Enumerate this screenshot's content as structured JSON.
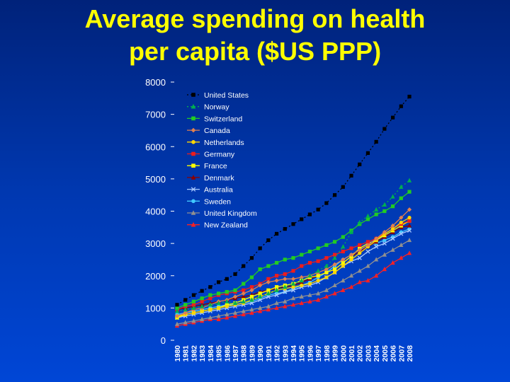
{
  "slide": {
    "title_line1": "Average spending on health",
    "title_line2": "per capita ($US PPP)"
  },
  "chart_data": {
    "type": "line",
    "title": "Average spending on health per capita ($US PPP)",
    "xlabel": "",
    "ylabel": "",
    "ylim": [
      0,
      8000
    ],
    "yticks": [
      0,
      1000,
      2000,
      3000,
      4000,
      5000,
      6000,
      7000,
      8000
    ],
    "grid": false,
    "legend_position": "top-left",
    "x": [
      "1980",
      "1981",
      "1982",
      "1983",
      "1984",
      "1985",
      "1986",
      "1987",
      "1988",
      "1989",
      "1990",
      "1991",
      "1992",
      "1993",
      "1994",
      "1995",
      "1996",
      "1997",
      "1998",
      "1999",
      "2000",
      "2001",
      "2002",
      "2003",
      "2004",
      "2005",
      "2006",
      "2007",
      "2008"
    ],
    "series": [
      {
        "name": "United States",
        "color": "#000000",
        "marker": "square",
        "line": "dotted",
        "values": [
          1100,
          1250,
          1400,
          1530,
          1650,
          1800,
          1900,
          2050,
          2300,
          2550,
          2850,
          3100,
          3300,
          3450,
          3600,
          3750,
          3900,
          4050,
          4250,
          4500,
          4750,
          5100,
          5450,
          5800,
          6150,
          6550,
          6900,
          7250,
          7550
        ]
      },
      {
        "name": "Norway",
        "color": "#00b050",
        "marker": "triangle",
        "line": "dotted",
        "values": [
          900,
          950,
          1000,
          1050,
          1100,
          1150,
          1200,
          1150,
          1200,
          1250,
          1350,
          1450,
          1550,
          1650,
          1750,
          1850,
          2000,
          2150,
          2300,
          2550,
          2900,
          3350,
          3650,
          3850,
          4050,
          4200,
          4450,
          4750,
          4950
        ]
      },
      {
        "name": "Switzerland",
        "color": "#22cc22",
        "marker": "square",
        "line": "solid",
        "values": [
          1000,
          1100,
          1200,
          1300,
          1400,
          1450,
          1500,
          1550,
          1750,
          1950,
          2200,
          2300,
          2400,
          2500,
          2550,
          2650,
          2750,
          2850,
          2950,
          3050,
          3200,
          3400,
          3600,
          3750,
          3900,
          4000,
          4150,
          4400,
          4600
        ]
      },
      {
        "name": "Canada",
        "color": "#e08050",
        "marker": "diamond",
        "line": "solid",
        "values": [
          750,
          850,
          950,
          1000,
          1100,
          1200,
          1250,
          1350,
          1450,
          1550,
          1700,
          1800,
          1850,
          1900,
          1900,
          1950,
          2000,
          2100,
          2200,
          2350,
          2500,
          2650,
          2800,
          2950,
          3150,
          3350,
          3550,
          3800,
          4050
        ]
      },
      {
        "name": "Netherlands",
        "color": "#ffd700",
        "marker": "circle",
        "line": "solid",
        "values": [
          750,
          800,
          850,
          900,
          950,
          1000,
          1050,
          1100,
          1150,
          1250,
          1350,
          1450,
          1550,
          1600,
          1650,
          1700,
          1750,
          1850,
          1950,
          2100,
          2300,
          2500,
          2700,
          2900,
          3100,
          3300,
          3450,
          3650,
          3800
        ]
      },
      {
        "name": "Germany",
        "color": "#ee1c1c",
        "marker": "square",
        "line": "solid",
        "values": [
          950,
          1050,
          1100,
          1200,
          1300,
          1400,
          1450,
          1500,
          1550,
          1650,
          1750,
          1900,
          2000,
          2050,
          2150,
          2300,
          2400,
          2450,
          2550,
          2650,
          2750,
          2850,
          2950,
          3050,
          3150,
          3300,
          3450,
          3600,
          3700
        ]
      },
      {
        "name": "France",
        "color": "#ffff00",
        "marker": "square",
        "line": "solid",
        "values": [
          700,
          800,
          850,
          900,
          950,
          1000,
          1100,
          1150,
          1250,
          1350,
          1450,
          1550,
          1650,
          1700,
          1750,
          1850,
          1950,
          2000,
          2100,
          2200,
          2400,
          2600,
          2850,
          3000,
          3100,
          3250,
          3400,
          3550,
          3700
        ]
      },
      {
        "name": "Denmark",
        "color": "#8b0000",
        "marker": "triangle",
        "line": "solid",
        "values": [
          950,
          1000,
          1050,
          1100,
          1150,
          1200,
          1250,
          1300,
          1350,
          1400,
          1500,
          1550,
          1600,
          1650,
          1700,
          1800,
          1900,
          2000,
          2100,
          2200,
          2400,
          2600,
          2750,
          2900,
          3050,
          3200,
          3350,
          3500,
          3550
        ]
      },
      {
        "name": "Australia",
        "color": "#a8c8ff",
        "marker": "x",
        "line": "solid",
        "values": [
          700,
          750,
          800,
          850,
          900,
          950,
          1000,
          1050,
          1100,
          1150,
          1250,
          1350,
          1400,
          1500,
          1550,
          1650,
          1700,
          1800,
          1950,
          2100,
          2300,
          2450,
          2550,
          2750,
          2900,
          3000,
          3150,
          3300,
          3400
        ]
      },
      {
        "name": "Sweden",
        "color": "#40c8ff",
        "marker": "circle",
        "line": "solid",
        "values": [
          800,
          850,
          900,
          950,
          1000,
          1050,
          1100,
          1100,
          1150,
          1200,
          1300,
          1400,
          1450,
          1500,
          1600,
          1700,
          1800,
          1950,
          2100,
          2300,
          2500,
          2650,
          2800,
          2950,
          3000,
          3100,
          3200,
          3350,
          3450
        ]
      },
      {
        "name": "United Kingdom",
        "color": "#909090",
        "marker": "triangle",
        "line": "solid",
        "values": [
          500,
          550,
          600,
          650,
          700,
          750,
          800,
          850,
          900,
          950,
          1000,
          1050,
          1150,
          1200,
          1300,
          1350,
          1400,
          1450,
          1550,
          1700,
          1850,
          2000,
          2150,
          2300,
          2500,
          2650,
          2800,
          2950,
          3100
        ]
      },
      {
        "name": "New Zealand",
        "color": "#ff2020",
        "marker": "triangle",
        "line": "solid",
        "values": [
          450,
          500,
          550,
          600,
          650,
          650,
          700,
          750,
          800,
          850,
          900,
          950,
          1000,
          1050,
          1100,
          1150,
          1200,
          1250,
          1350,
          1450,
          1550,
          1650,
          1800,
          1850,
          2000,
          2200,
          2400,
          2550,
          2700
        ]
      }
    ]
  }
}
